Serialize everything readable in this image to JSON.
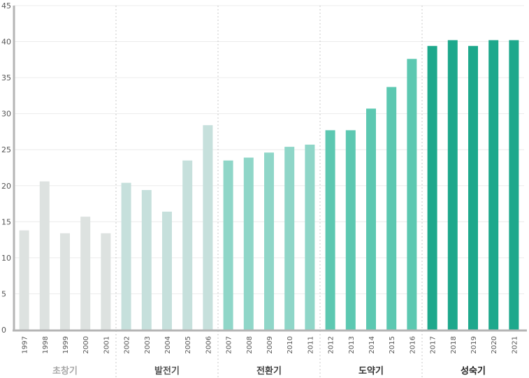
{
  "chart_data": {
    "type": "bar",
    "title": "",
    "xlabel": "",
    "ylabel": "",
    "ylim": [
      0,
      45
    ],
    "yticks": [
      0,
      5,
      10,
      15,
      20,
      25,
      30,
      35,
      40,
      45
    ],
    "grid": true,
    "categories": [
      "1997",
      "1998",
      "1999",
      "2000",
      "2001",
      "2002",
      "2003",
      "2004",
      "2005",
      "2006",
      "2007",
      "2008",
      "2009",
      "2010",
      "2011",
      "2012",
      "2013",
      "2014",
      "2015",
      "2016",
      "2017",
      "2018",
      "2019",
      "2020",
      "2021"
    ],
    "values": [
      13.8,
      20.6,
      13.4,
      15.7,
      13.4,
      20.4,
      19.4,
      16.4,
      23.5,
      28.4,
      23.5,
      23.9,
      24.6,
      25.4,
      25.7,
      27.7,
      27.7,
      30.7,
      33.7,
      37.6,
      39.4,
      40.2,
      39.4,
      40.2,
      40.2
    ],
    "phases": [
      {
        "label": "초창기",
        "start": 0,
        "end": 4,
        "color": "#dde2e0",
        "label_color": "#a8a8a8"
      },
      {
        "label": "발전기",
        "start": 5,
        "end": 9,
        "color": "#c6e0dc",
        "label_color": "#555555"
      },
      {
        "label": "전환기",
        "start": 10,
        "end": 14,
        "color": "#8fd6c8",
        "label_color": "#444444"
      },
      {
        "label": "도약기",
        "start": 15,
        "end": 19,
        "color": "#5cc8b1",
        "label_color": "#333333"
      },
      {
        "label": "성숙기",
        "start": 20,
        "end": 24,
        "color": "#1da88c",
        "label_color": "#222222"
      }
    ]
  }
}
